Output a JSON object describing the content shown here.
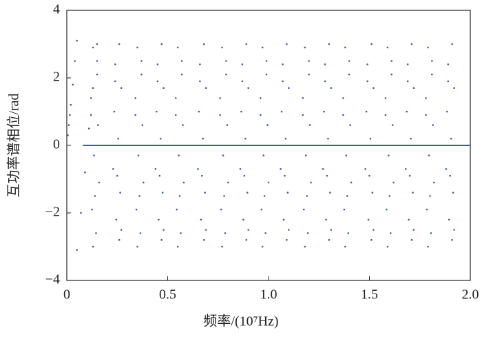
{
  "chart_data": {
    "type": "scatter",
    "x_label": "频率/(10⁷Hz)",
    "y_label": "互功率谱相位/rad",
    "xlim": [
      0,
      2.0
    ],
    "ylim": [
      -4,
      4
    ],
    "xticks": [
      0,
      0.5,
      {
        "value": 1,
        "label": "1.0"
      },
      1.5,
      {
        "value": 2,
        "label": "2.0"
      }
    ],
    "yticks": [
      4,
      2,
      0,
      {
        "value": -2,
        "label": "−2"
      },
      {
        "value": -4,
        "label": "−4"
      }
    ],
    "series": [
      {
        "type": "scatter",
        "color": "#3d5e9a",
        "x": [
          0.005,
          0.01,
          0.015,
          0.02,
          0.03,
          0.04,
          0.05,
          0.05,
          0.07,
          0.09,
          0.11,
          0.13,
          0.15,
          0.13,
          0.15,
          0.12,
          0.155,
          0.135,
          0.16,
          0.125,
          0.145,
          0.13,
          0.15,
          0.14,
          0.12,
          0.26,
          0.24,
          0.27,
          0.235,
          0.255,
          0.23,
          0.265,
          0.245,
          0.26,
          0.24,
          0.25,
          0.27,
          0.35,
          0.37,
          0.34,
          0.375,
          0.355,
          0.38,
          0.345,
          0.365,
          0.35,
          0.37,
          0.36,
          0.34,
          0.47,
          0.45,
          0.48,
          0.445,
          0.465,
          0.44,
          0.475,
          0.455,
          0.47,
          0.45,
          0.46,
          0.48,
          0.55,
          0.57,
          0.54,
          0.575,
          0.555,
          0.58,
          0.545,
          0.565,
          0.55,
          0.57,
          0.56,
          0.54,
          0.68,
          0.66,
          0.69,
          0.655,
          0.675,
          0.65,
          0.685,
          0.665,
          0.68,
          0.66,
          0.67,
          0.69,
          0.77,
          0.79,
          0.76,
          0.795,
          0.775,
          0.8,
          0.765,
          0.785,
          0.77,
          0.79,
          0.78,
          0.76,
          0.89,
          0.87,
          0.9,
          0.865,
          0.885,
          0.86,
          0.895,
          0.875,
          0.89,
          0.87,
          0.88,
          0.9,
          0.97,
          0.99,
          0.96,
          0.995,
          0.975,
          1.0,
          0.965,
          0.985,
          0.97,
          0.99,
          0.98,
          0.96,
          1.09,
          1.07,
          1.1,
          1.065,
          1.085,
          1.06,
          1.095,
          1.075,
          1.09,
          1.07,
          1.08,
          1.1,
          1.18,
          1.2,
          1.17,
          1.205,
          1.185,
          1.21,
          1.175,
          1.195,
          1.18,
          1.2,
          1.19,
          1.17,
          1.3,
          1.28,
          1.31,
          1.275,
          1.295,
          1.27,
          1.305,
          1.285,
          1.3,
          1.28,
          1.29,
          1.31,
          1.38,
          1.4,
          1.37,
          1.405,
          1.385,
          1.41,
          1.375,
          1.395,
          1.38,
          1.4,
          1.39,
          1.37,
          1.51,
          1.49,
          1.52,
          1.485,
          1.505,
          1.48,
          1.515,
          1.495,
          1.51,
          1.49,
          1.5,
          1.52,
          1.59,
          1.61,
          1.58,
          1.615,
          1.595,
          1.62,
          1.585,
          1.605,
          1.59,
          1.61,
          1.6,
          1.58,
          1.71,
          1.69,
          1.72,
          1.685,
          1.705,
          1.68,
          1.715,
          1.695,
          1.71,
          1.69,
          1.7,
          1.72,
          1.79,
          1.81,
          1.78,
          1.815,
          1.795,
          1.82,
          1.785,
          1.805,
          1.79,
          1.81,
          1.8,
          1.78,
          1.91,
          1.89,
          1.92,
          1.885,
          1.905,
          1.88,
          1.915,
          1.895,
          1.91,
          1.89,
          1.9,
          1.92
        ],
        "values": [
          0.3,
          0.6,
          0.9,
          1.2,
          1.8,
          2.5,
          3.1,
          -3.1,
          -2.0,
          -0.8,
          0.5,
          1.7,
          3.0,
          2.9,
          2.1,
          1.4,
          0.6,
          -0.3,
          -1.1,
          -1.9,
          -2.6,
          -3.0,
          2.5,
          -1.5,
          0.9,
          3.0,
          2.4,
          1.7,
          1.0,
          0.2,
          -0.7,
          -1.4,
          -2.2,
          -2.8,
          1.9,
          -0.9,
          -2.5,
          2.9,
          2.1,
          1.4,
          0.6,
          -0.3,
          -1.1,
          -1.9,
          -2.6,
          -3.0,
          2.5,
          -1.5,
          0.9,
          3.0,
          2.4,
          1.7,
          1.0,
          0.2,
          -0.7,
          -1.4,
          -2.2,
          -2.8,
          1.9,
          -0.9,
          -2.5,
          2.9,
          2.1,
          1.4,
          0.6,
          -0.3,
          -1.1,
          -1.9,
          -2.6,
          -3.0,
          2.5,
          -1.5,
          0.9,
          3.0,
          2.4,
          1.7,
          1.0,
          0.2,
          -0.7,
          -1.4,
          -2.2,
          -2.8,
          1.9,
          -0.9,
          -2.5,
          2.9,
          2.1,
          1.4,
          0.6,
          -0.3,
          -1.1,
          -1.9,
          -2.6,
          -3.0,
          2.5,
          -1.5,
          0.9,
          3.0,
          2.4,
          1.7,
          1.0,
          0.2,
          -0.7,
          -1.4,
          -2.2,
          -2.8,
          1.9,
          -0.9,
          -2.5,
          2.9,
          2.1,
          1.4,
          0.6,
          -0.3,
          -1.1,
          -1.9,
          -2.6,
          -3.0,
          2.5,
          -1.5,
          0.9,
          3.0,
          2.4,
          1.7,
          1.0,
          0.2,
          -0.7,
          -1.4,
          -2.2,
          -2.8,
          1.9,
          -0.9,
          -2.5,
          2.9,
          2.1,
          1.4,
          0.6,
          -0.3,
          -1.1,
          -1.9,
          -2.6,
          -3.0,
          2.5,
          -1.5,
          0.9,
          3.0,
          2.4,
          1.7,
          1.0,
          0.2,
          -0.7,
          -1.4,
          -2.2,
          -2.8,
          1.9,
          -0.9,
          -2.5,
          2.9,
          2.1,
          1.4,
          0.6,
          -0.3,
          -1.1,
          -1.9,
          -2.6,
          -3.0,
          2.5,
          -1.5,
          0.9,
          3.0,
          2.4,
          1.7,
          1.0,
          0.2,
          -0.7,
          -1.4,
          -2.2,
          -2.8,
          1.9,
          -0.9,
          -2.5,
          2.9,
          2.1,
          1.4,
          0.6,
          -0.3,
          -1.1,
          -1.9,
          -2.6,
          -3.0,
          2.5,
          -1.5,
          0.9,
          3.0,
          2.4,
          1.7,
          1.0,
          0.2,
          -0.7,
          -1.4,
          -2.2,
          -2.8,
          1.9,
          -0.9,
          -2.5,
          2.9,
          2.1,
          1.4,
          0.6,
          -0.3,
          -1.1,
          -1.9,
          -2.6,
          -3.0,
          2.5,
          -1.5,
          0.9,
          3.0,
          2.4,
          1.7,
          1.0,
          0.2,
          -0.7,
          -1.4,
          -2.2,
          -2.8,
          1.9,
          -0.9,
          -2.5
        ]
      },
      {
        "type": "line",
        "color": "#3d5e9a",
        "x": [
          0.08,
          2.0
        ],
        "values": [
          0,
          0
        ]
      }
    ]
  }
}
